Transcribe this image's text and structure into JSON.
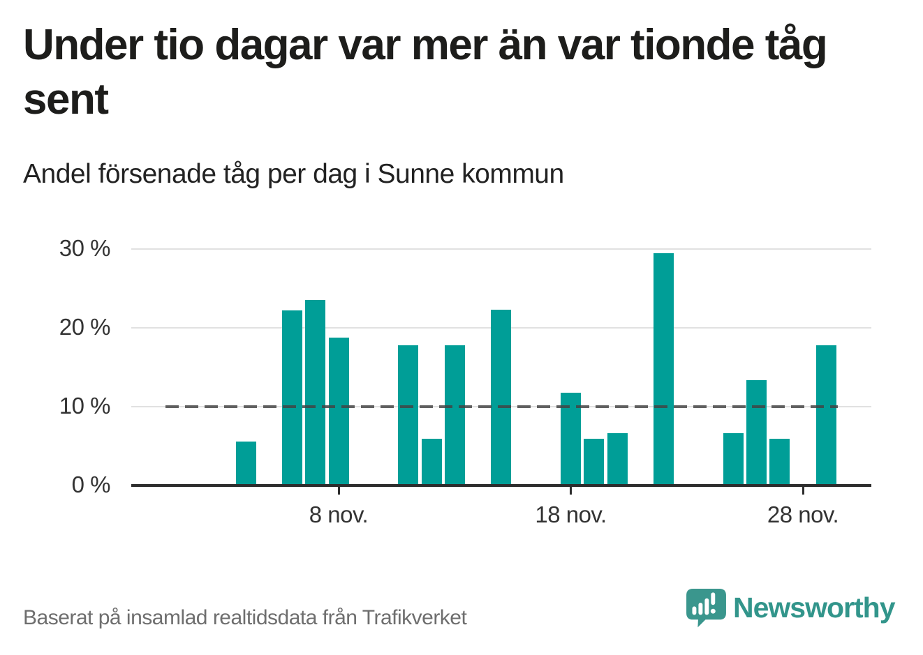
{
  "title": "Under tio dagar var mer än var tionde tåg sent",
  "subtitle": "Andel försenade tåg per dag i Sunne kommun",
  "source_note": "Baserat på insamlad realtidsdata från Trafikverket",
  "brand": {
    "name": "Newsworthy",
    "icon": "speech-bubble-bar-chart-icon",
    "color": "#32958b"
  },
  "chart_data": {
    "type": "bar",
    "title": "Under tio dagar var mer än var tionde tåg sent",
    "subtitle": "Andel försenade tåg per dag i Sunne kommun",
    "unit": "%",
    "month": "nov.",
    "x_day_of_month": [
      4,
      6,
      7,
      8,
      11,
      12,
      13,
      15,
      18,
      19,
      20,
      22,
      25,
      26,
      27,
      29
    ],
    "values": [
      5.6,
      22.2,
      23.5,
      18.8,
      17.8,
      5.9,
      17.8,
      22.3,
      11.8,
      5.9,
      6.6,
      29.5,
      6.6,
      13.4,
      5.9,
      17.8
    ],
    "ylim": [
      0,
      30
    ],
    "y_ticks": [
      {
        "value": 0,
        "label": "0 %"
      },
      {
        "value": 10,
        "label": "10 %"
      },
      {
        "value": 20,
        "label": "20 %"
      },
      {
        "value": 30,
        "label": "30 %"
      }
    ],
    "x_ticks": [
      {
        "day": 8,
        "label": "8 nov."
      },
      {
        "day": 18,
        "label": "18 nov."
      },
      {
        "day": 28,
        "label": "28 nov."
      }
    ],
    "reference_line": {
      "value": 10,
      "style": "dashed"
    },
    "bar_color": "#009e97",
    "grid": "horizontal",
    "legend": "none"
  }
}
